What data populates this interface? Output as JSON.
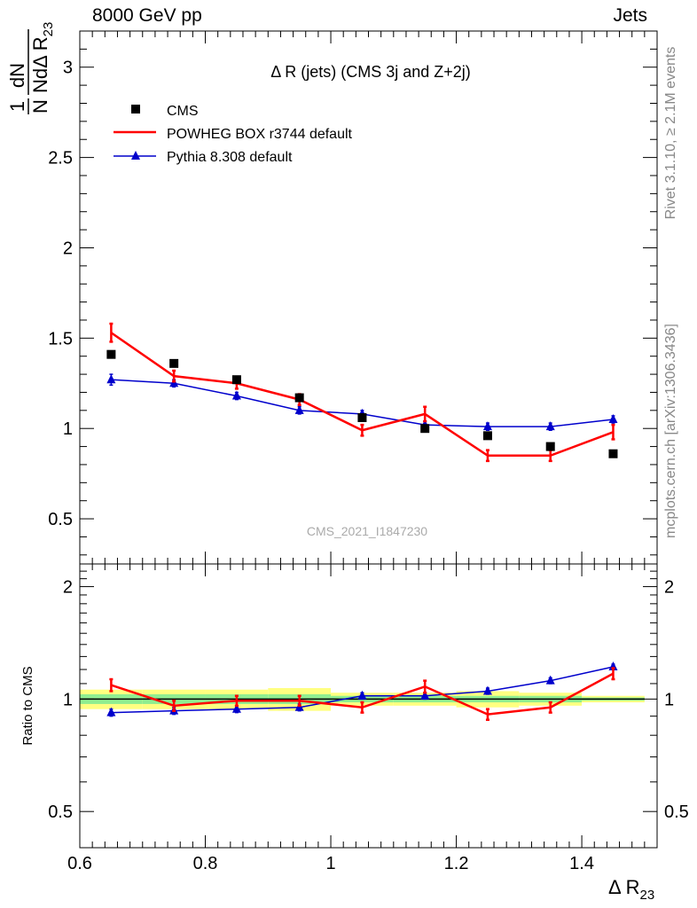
{
  "header": {
    "energy_label": "8000 GeV pp",
    "category_label": "Jets"
  },
  "side_text": {
    "rivet": "Rivet 3.1.10, ≥ 2.1M events",
    "mcplots": "mcplots.cern.ch [arXiv:1306.3436]"
  },
  "chart_data": [
    {
      "type": "line",
      "panel": "main",
      "title": "Δ R (jets) (CMS 3j and Z+2j)",
      "watermark": "CMS_2021_I1847230",
      "ylabel": {
        "num": "dN",
        "den_prefix": "NdΔ R",
        "den_sub": "23",
        "prefix": "1"
      },
      "ylim": [
        0.25,
        3.2
      ],
      "yticks": [
        0.5,
        1,
        1.5,
        2,
        2.5,
        3
      ],
      "ytick_labels": [
        "0.5",
        "1",
        "1.5",
        "2",
        "2.5",
        "3"
      ],
      "legend_position": "top-left",
      "x": [
        0.65,
        0.75,
        0.85,
        0.95,
        1.05,
        1.15,
        1.25,
        1.35,
        1.45
      ],
      "series": [
        {
          "name": "CMS",
          "style": "markers",
          "marker": "square",
          "color": "#000000",
          "values": [
            1.41,
            1.36,
            1.27,
            1.17,
            1.06,
            1.0,
            0.96,
            0.9,
            0.86
          ]
        },
        {
          "name": "POWHEG BOX r3744 default",
          "style": "line",
          "color": "#ff0000",
          "values": [
            1.53,
            1.29,
            1.25,
            1.16,
            0.99,
            1.08,
            0.85,
            0.85,
            0.98
          ],
          "errors": [
            0.05,
            0.03,
            0.03,
            0.03,
            0.03,
            0.04,
            0.03,
            0.03,
            0.04
          ]
        },
        {
          "name": "Pythia 8.308 default",
          "style": "line",
          "marker": "triangle",
          "color": "#0000cc",
          "values": [
            1.27,
            1.25,
            1.18,
            1.1,
            1.08,
            1.02,
            1.01,
            1.01,
            1.05
          ],
          "errors": [
            0.03,
            0.02,
            0.02,
            0.02,
            0.02,
            0.02,
            0.02,
            0.02,
            0.02
          ]
        }
      ]
    },
    {
      "type": "line",
      "panel": "ratio",
      "ylabel": "Ratio to CMS",
      "ylim": [
        0.4,
        2.3
      ],
      "yticks": [
        0.5,
        1,
        2
      ],
      "ytick_labels": [
        "0.5",
        "1",
        "2"
      ],
      "xlabel": {
        "main": "Δ R",
        "sub": "23"
      },
      "xlim": [
        0.6,
        1.52
      ],
      "xticks": [
        0.6,
        0.8,
        1,
        1.2,
        1.4
      ],
      "xtick_labels": [
        "0.6",
        "0.8",
        "1",
        "1.2",
        "1.4"
      ],
      "x": [
        0.65,
        0.75,
        0.85,
        0.95,
        1.05,
        1.15,
        1.25,
        1.35,
        1.45
      ],
      "band_color_stat": "#90ee90",
      "band_color_total": "#ffff80",
      "band_stat": [
        0.03,
        0.03,
        0.03,
        0.03,
        0.02,
        0.02,
        0.02,
        0.02,
        0.01
      ],
      "band_total": [
        0.06,
        0.06,
        0.06,
        0.07,
        0.04,
        0.04,
        0.05,
        0.04,
        0.02
      ],
      "series": [
        {
          "name": "POWHEG BOX r3744 default",
          "color": "#ff0000",
          "values": [
            1.09,
            0.96,
            0.99,
            0.99,
            0.95,
            1.08,
            0.91,
            0.95,
            1.17
          ],
          "errors": [
            0.04,
            0.03,
            0.03,
            0.03,
            0.03,
            0.04,
            0.03,
            0.03,
            0.04
          ]
        },
        {
          "name": "Pythia 8.308 default",
          "color": "#0000cc",
          "values": [
            0.92,
            0.93,
            0.94,
            0.95,
            1.02,
            1.02,
            1.05,
            1.12,
            1.22
          ],
          "errors": [
            0.02,
            0.02,
            0.02,
            0.02,
            0.02,
            0.02,
            0.02,
            0.02,
            0.02
          ]
        }
      ]
    }
  ]
}
